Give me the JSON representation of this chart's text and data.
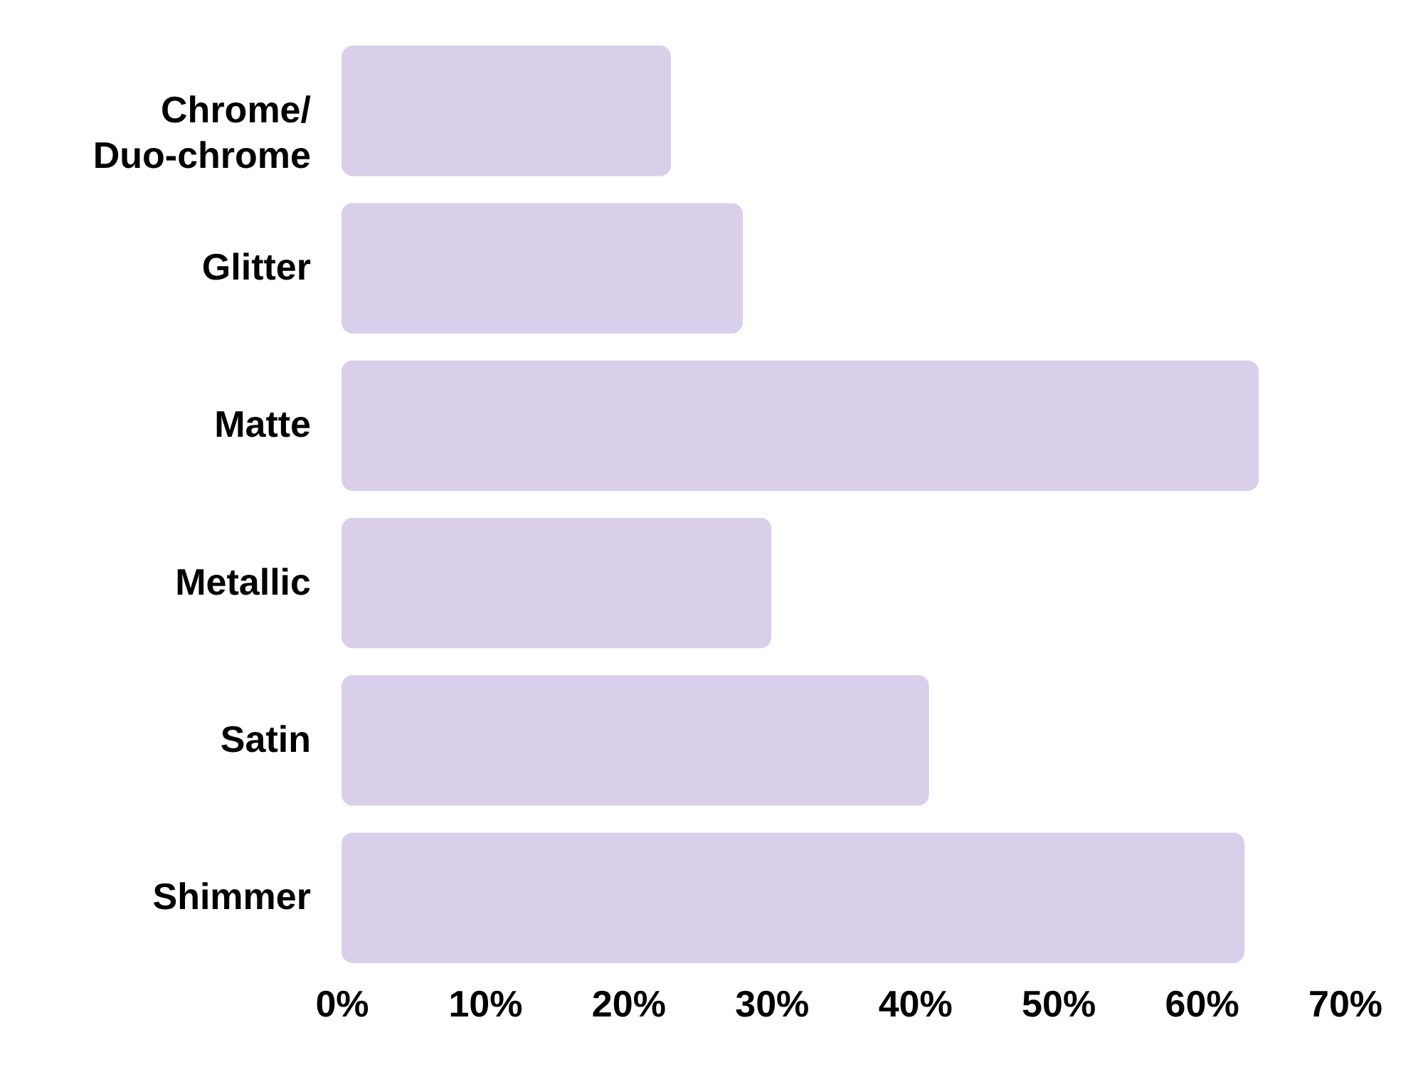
{
  "chart_data": {
    "type": "bar",
    "orientation": "horizontal",
    "categories": [
      "Chrome/\nDuo-chrome",
      "Glitter",
      "Matte",
      "Metallic",
      "Satin",
      "Shimmer"
    ],
    "values": [
      23,
      28,
      64,
      30,
      41,
      63
    ],
    "color": "#d9cfea",
    "xlim": [
      0,
      70
    ],
    "xticks": [
      {
        "value": 0,
        "label": "0%"
      },
      {
        "value": 10,
        "label": "10%"
      },
      {
        "value": 20,
        "label": "20%"
      },
      {
        "value": 30,
        "label": "30%"
      },
      {
        "value": 40,
        "label": "40%"
      },
      {
        "value": 50,
        "label": "50%"
      },
      {
        "value": 60,
        "label": "60%"
      },
      {
        "value": 70,
        "label": "70%"
      }
    ],
    "grid": false
  }
}
